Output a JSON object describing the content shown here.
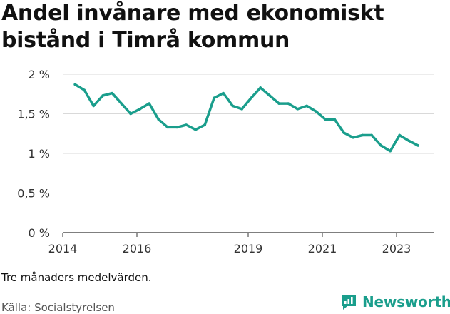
{
  "title": "Andel invånare med ekonomiskt bistånd i Timrå kommun",
  "note": "Tre månaders medelvärden.",
  "source": "Källa: Socialstyrelsen",
  "brand": {
    "name": "Newsworthy",
    "icon": "newsworthy-logo-icon",
    "color": "#1a9e8c"
  },
  "chart_data": {
    "type": "line",
    "title": "Andel invånare med ekonomiskt bistånd i Timrå kommun",
    "xlabel": "",
    "ylabel": "",
    "ylim": [
      0,
      2
    ],
    "xlim": [
      2014.0,
      2024.0
    ],
    "grid": true,
    "line_color": "#1a9e8c",
    "y_ticks": [
      {
        "value": 0,
        "label": "0 %"
      },
      {
        "value": 0.5,
        "label": "0,5 %"
      },
      {
        "value": 1,
        "label": "1 %"
      },
      {
        "value": 1.5,
        "label": "1,5 %"
      },
      {
        "value": 2,
        "label": "2 %"
      }
    ],
    "x_ticks": [
      {
        "value": 2014.0,
        "label": "2014"
      },
      {
        "value": 2016.0,
        "label": "2016"
      },
      {
        "value": 2019.0,
        "label": "2019"
      },
      {
        "value": 2021.0,
        "label": "2021"
      },
      {
        "value": 2023.0,
        "label": "2023"
      }
    ],
    "series": [
      {
        "x": [
          2014.33,
          2014.58,
          2014.83,
          2015.08,
          2015.33,
          2015.58,
          2015.83,
          2016.08,
          2016.33,
          2016.58,
          2016.83,
          2017.08,
          2017.33,
          2017.58,
          2017.83,
          2018.08,
          2018.33,
          2018.58,
          2018.83,
          2019.08,
          2019.33,
          2019.58,
          2019.83,
          2020.08,
          2020.33,
          2020.58,
          2020.83,
          2021.08,
          2021.33,
          2021.58,
          2021.83,
          2022.08,
          2022.33,
          2022.58,
          2022.83,
          2023.08,
          2023.33,
          2023.58
        ],
        "values": [
          1.87,
          1.8,
          1.6,
          1.73,
          1.76,
          1.63,
          1.5,
          1.56,
          1.63,
          1.43,
          1.33,
          1.33,
          1.36,
          1.3,
          1.36,
          1.7,
          1.76,
          1.6,
          1.56,
          1.7,
          1.83,
          1.73,
          1.63,
          1.63,
          1.56,
          1.6,
          1.53,
          1.43,
          1.43,
          1.26,
          1.2,
          1.23,
          1.23,
          1.1,
          1.03,
          1.23,
          1.16,
          1.1
        ]
      }
    ]
  }
}
